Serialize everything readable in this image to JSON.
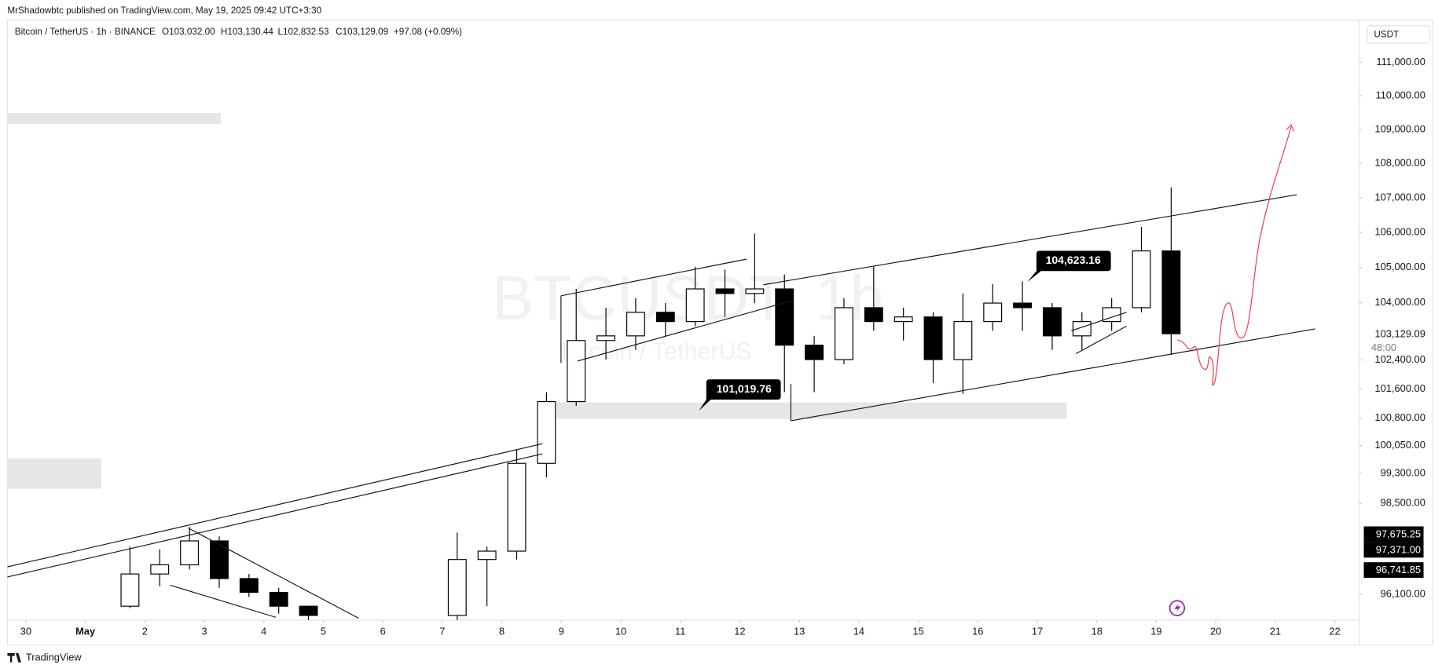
{
  "header": {
    "published": "MrShadowbtc published on TradingView.com, May 19, 2025 09:42 UTC+3:30",
    "footer": "TradingView"
  },
  "chart_data": {
    "type": "candlestick",
    "symbol": "Bitcoin / TetherUS · 1h · BINANCE",
    "legend": [
      "O103,032.00",
      "H103,130.44",
      "L102,832.53",
      "C103,129.09",
      "+97.08 (+0.09%)"
    ],
    "currency": "USDT",
    "watermark": [
      "BTCUSDT, 1h",
      "Bitcoin / TetherUS"
    ],
    "x": [
      1.5,
      2.0,
      2.5,
      3.0,
      3.5,
      4.0,
      4.5,
      7.0,
      7.5,
      8.0,
      8.5,
      9.0,
      9.5,
      10.0,
      10.5,
      11.0,
      11.5,
      12.0,
      12.5,
      13.0,
      13.5,
      14.0,
      14.5,
      15.0,
      15.5,
      16.0,
      16.5,
      17.0,
      17.5,
      18.0,
      18.5,
      19.0
    ],
    "open": [
      95790,
      96630,
      96870,
      97500,
      96510,
      96150,
      95790,
      95550,
      97010,
      97230,
      99570,
      101250,
      102940,
      103070,
      103730,
      103470,
      104390,
      104260,
      104390,
      102810,
      102410,
      103860,
      103470,
      103600,
      102410,
      103470,
      103990,
      103860,
      103070,
      103470,
      103860,
      105470
    ],
    "high": [
      97350,
      97280,
      97870,
      97620,
      96630,
      96270,
      95790,
      97720,
      97350,
      99950,
      101510,
      104390,
      103860,
      104130,
      103990,
      105020,
      104940,
      105970,
      104800,
      103070,
      104130,
      105020,
      103860,
      103730,
      104260,
      104530,
      104600,
      103990,
      103730,
      104130,
      106160,
      107300
    ],
    "low": [
      95740,
      96310,
      96750,
      96270,
      96030,
      95600,
      95310,
      95430,
      95790,
      97010,
      99190,
      101130,
      102410,
      102680,
      103070,
      103340,
      103600,
      103990,
      101510,
      101510,
      102280,
      103210,
      102940,
      101760,
      101460,
      103210,
      103210,
      102680,
      102680,
      103210,
      103730,
      102540
    ],
    "close": [
      96630,
      96870,
      97500,
      96510,
      96150,
      95790,
      95550,
      97010,
      97230,
      99570,
      101250,
      102940,
      103070,
      103730,
      103470,
      104390,
      104260,
      104390,
      102810,
      102410,
      103860,
      103470,
      103600,
      102410,
      103470,
      103990,
      103860,
      103070,
      103470,
      103860,
      105470,
      103129.09
    ],
    "xlim": [
      -0.31,
      22.41
    ],
    "xticks": [
      {
        "value": 0,
        "label": "30"
      },
      {
        "value": 1,
        "label": "May"
      },
      2,
      3,
      4,
      5,
      6,
      7,
      8,
      9,
      10,
      11,
      12,
      13,
      14,
      15,
      16,
      17,
      18,
      19,
      20,
      21,
      22
    ],
    "ylim": [
      95430,
      112190
    ],
    "log_scale": true,
    "yticks": [
      {
        "value": 111000,
        "label": "111,000.00"
      },
      {
        "value": 110000,
        "label": "110,000.00"
      },
      {
        "value": 109000,
        "label": "109,000.00"
      },
      {
        "value": 108000,
        "label": "108,000.00"
      },
      {
        "value": 107000,
        "label": "107,000.00"
      },
      {
        "value": 106000,
        "label": "106,000.00"
      },
      {
        "value": 105000,
        "label": "105,000.00"
      },
      {
        "value": 104000,
        "label": "104,000.00"
      },
      {
        "value": 102400,
        "label": "102,400.00"
      },
      {
        "value": 101600,
        "label": "101,600.00"
      },
      {
        "value": 100800,
        "label": "100,800.00"
      },
      {
        "value": 100050,
        "label": "100,050.00"
      },
      {
        "value": 99300,
        "label": "99,300.00"
      },
      {
        "value": 98500,
        "label": "98,500.00"
      },
      {
        "value": 96100,
        "label": "96,100.00"
      }
    ],
    "up_color": "#ffffff",
    "down_color": "#000000",
    "callouts": [
      "104,623.16",
      "101,019.76"
    ],
    "price_labels": [
      "103,129.09",
      "48:00",
      "97,675.25",
      "97,371.00",
      "96,741.85"
    ]
  }
}
